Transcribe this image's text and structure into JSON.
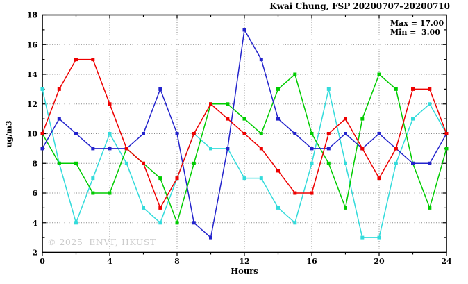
{
  "title": "Kwai Chung, FSP 20200707–20200710",
  "legend": {
    "line1": "Max = 17.00",
    "line2": "Min =  3.00"
  },
  "x_axis": {
    "label": "Hours",
    "min": 0,
    "max": 24,
    "major_ticks": [
      0,
      4,
      8,
      12,
      16,
      20,
      24
    ],
    "minor_step": 2
  },
  "y_axis": {
    "label": "ug/m3",
    "min": 2,
    "max": 18,
    "major_ticks": [
      2,
      4,
      6,
      8,
      10,
      12,
      14,
      16,
      18
    ],
    "minor_step": 1
  },
  "watermark": {
    "text": "© 2025  ENVF, HKUST"
  },
  "colors": {
    "frame": "#000000",
    "grid": "#888888",
    "red": "#ee0000",
    "green": "#00cc00",
    "blue": "#2323cc",
    "cyan": "#33dbdb"
  },
  "chart_data": {
    "type": "line",
    "title": "Kwai Chung, FSP 20200707–20200710",
    "xlabel": "Hours",
    "ylabel": "ug/m3",
    "xlim": [
      0,
      24
    ],
    "ylim": [
      2,
      18
    ],
    "grid": true,
    "annotations": {
      "max": 17.0,
      "min": 3.0
    },
    "x": [
      0,
      1,
      2,
      3,
      4,
      5,
      6,
      7,
      8,
      9,
      10,
      11,
      12,
      13,
      14,
      15,
      16,
      17,
      18,
      19,
      20,
      21,
      22,
      23,
      24
    ],
    "series": [
      {
        "name": "cyan-series",
        "color": "#33dbdb",
        "values": [
          13,
          8,
          4,
          7,
          10,
          8,
          5,
          4,
          7,
          10,
          9,
          9,
          7,
          7,
          5,
          4,
          8,
          13,
          8,
          3,
          3,
          8,
          11,
          12,
          10
        ]
      },
      {
        "name": "green-series",
        "color": "#00cc00",
        "values": [
          10,
          8,
          8,
          6,
          6,
          9,
          8,
          7,
          4,
          8,
          12,
          12,
          11,
          10,
          13,
          14,
          10,
          8,
          5,
          11,
          14,
          13,
          8,
          5,
          9
        ]
      },
      {
        "name": "blue-series",
        "color": "#2323cc",
        "values": [
          9,
          11,
          10,
          9,
          9,
          9,
          10,
          13,
          10,
          4,
          3,
          9,
          17,
          15,
          11,
          10,
          9,
          9,
          10,
          9,
          10,
          9,
          8,
          8,
          10
        ]
      },
      {
        "name": "red-series",
        "color": "#ee0000",
        "values": [
          10,
          13,
          15,
          15,
          12,
          9,
          8,
          5,
          7,
          10,
          12,
          11,
          10,
          9,
          7.5,
          6,
          6,
          10,
          11,
          9,
          7,
          9,
          13,
          13,
          10
        ]
      }
    ]
  }
}
